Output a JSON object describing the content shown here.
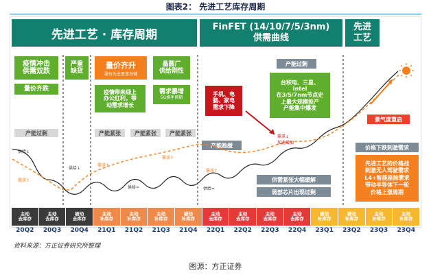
{
  "figure": {
    "title": "图表2：   先进工艺库存周期",
    "source_left": "资料来源：方正证券研究所整理",
    "source_bottom": "图源：方正证券"
  },
  "banners": {
    "left": "先进工艺 · 库存周期",
    "middle": "FinFET (14/10/7/5/3nm)\n供需曲线",
    "right": "先进\n工艺"
  },
  "labels": {
    "epidemic": "疫情冲击\n供需双跌",
    "price_qty_fall": "量价齐跌",
    "severe_shortage": "严重\n缺货",
    "price_qty_rise": "量价齐升",
    "price_rise_sub": "涨价为主恶意为辅",
    "fab_rigid": "晶圆厂\n供给刚性",
    "wfh_dividend": "疫情带来线上\n办公红利，带\n动需求增长",
    "demand_surge": "需求暴增",
    "g5_upgrade": "5G换手预期",
    "phone_pc_tv": "手机、电\n脑、家电\n需求下降",
    "capacity_over": "产能过剩",
    "capacity_tight_1": "产能紧张",
    "capacity_tight_2": "产能紧张",
    "capacity_tight_3": "产能紧张",
    "capacity_ease": "产能趋缓",
    "capacity_over_right": "产能过剩",
    "tsmc_etc": "台积电、三星、\nIntel\n在3/5/7nm节点史\n上最大规模投产\n产能集中爆发",
    "capacity_shortage_ease": "供需紧张大幅缓解",
    "partial_over": "局部芯片出现过剩",
    "boom_recover": "景气度重启",
    "price_drop_stim": "价格下跌刺激需求",
    "advanced_war": "先进工艺的价格战\n刺激无人驾驶需求\nL4+智能座舱需求\n带动半导体下一轮\n价格上涨周期",
    "supply_down": "供给↓",
    "supply_down_2": "供给↓",
    "supply_eq": "供给=",
    "supply_eq_2": "供给=",
    "supply_up": "供给↑",
    "supply_up_2": "供给↑",
    "demand_up": "需求↑",
    "demand_up_2": "需求↑",
    "demand_up_3": "需求↑",
    "demand_up_4": "需求↑",
    "demand_drop": "需求↓\n加速增加",
    "supply_1": "供给=",
    "supply_2": "供给↑"
  },
  "chips": [
    {
      "label": "主动\n去库存",
      "color": "#3a3a3a",
      "q": "20Q2"
    },
    {
      "label": "主动\n去库存",
      "color": "#3a3a3a",
      "q": "20Q3"
    },
    {
      "label": "被动\n去库存",
      "color": "#3a3a3a",
      "q": "20Q4"
    },
    {
      "label": "主动\n补库存",
      "color": "#f08a4b",
      "q": "21Q1"
    },
    {
      "label": "主动\n补库存",
      "color": "#f08a4b",
      "q": "21Q2"
    },
    {
      "label": "主动\n补库存",
      "color": "#f08a4b",
      "q": "21Q3"
    },
    {
      "label": "被动\n补库存",
      "color": "#f08a4b",
      "q": "21Q4"
    },
    {
      "label": "主动\n去库存",
      "color": "#e63a3a",
      "q": "22Q1"
    },
    {
      "label": "主动\n去库存",
      "color": "#e63a3a",
      "q": "22Q2"
    },
    {
      "label": "主动\n去库存",
      "color": "#e63a3a",
      "q": "22Q3"
    },
    {
      "label": "主动\n去库存",
      "color": "#e63a3a",
      "q": "22Q4"
    },
    {
      "label": "被动\n补库存",
      "color": "#f5b82e",
      "q": "23Q1"
    },
    {
      "label": "被动\n补库存",
      "color": "#f5b82e",
      "q": "23Q2"
    },
    {
      "label": "主动\n补库存",
      "color": "#f5b82e",
      "q": "23Q3"
    },
    {
      "label": "主动\n补库存",
      "color": "#f5b82e",
      "q": "23Q4"
    }
  ],
  "colors": {
    "banner": "#13806f",
    "green": "#5fae2e",
    "orange": "#f5801f",
    "red": "#c8161d",
    "quarter_text": "#1f3a6b"
  }
}
